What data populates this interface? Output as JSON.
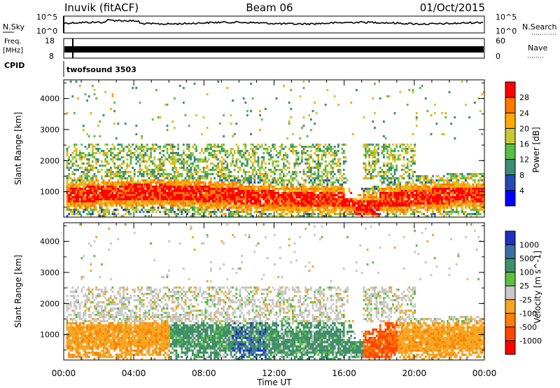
{
  "header": {
    "station": "Inuvik (fitACF)",
    "beam": "Beam 06",
    "date": "01/Oct/2015"
  },
  "top_panels": {
    "noise": {
      "left_label": "N.Sky",
      "right_label": "N.Search",
      "left_ticks": [
        "10^5",
        "10^0"
      ],
      "right_ticks": [
        "10^5",
        "10^0"
      ]
    },
    "frequency": {
      "left_label_1": "Freq.",
      "left_label_2": "[MHz]",
      "right_label": "Nave",
      "left_ticks": [
        "18",
        "8"
      ],
      "right_ticks": [
        "60",
        "0"
      ]
    },
    "cpid": {
      "label": "CPID",
      "mode": "twofsound 3503"
    }
  },
  "chart_data": [
    {
      "type": "heatmap",
      "name": "power",
      "ylabel": "Slant Range [km]",
      "xlabel": "",
      "x_ticks": [
        "00:00",
        "04:00",
        "08:00",
        "12:00",
        "16:00",
        "20:00",
        "00:00"
      ],
      "xlim_hours": [
        0,
        24
      ],
      "y_ticks": [
        1000,
        2000,
        3000,
        4000
      ],
      "ylim": [
        180,
        4600
      ],
      "colorbar": {
        "label": "Power [dB]",
        "ticks": [
          4,
          8,
          12,
          16,
          20,
          24,
          28
        ],
        "range": [
          0,
          32
        ],
        "colors": [
          "#0000ff",
          "#2649b3",
          "#3c8c78",
          "#5abe46",
          "#c8c832",
          "#ffaa00",
          "#ff7800",
          "#ff0000"
        ]
      },
      "regions": [
        {
          "from_h": 0,
          "to_h": 24,
          "range_km": [
            300,
            2600
          ],
          "value": "scatter"
        }
      ]
    },
    {
      "type": "heatmap",
      "name": "velocity",
      "ylabel": "Slant Range [km]",
      "xlabel": "Time UT",
      "x_ticks": [
        "00:00",
        "04:00",
        "08:00",
        "12:00",
        "16:00",
        "20:00",
        "00:00"
      ],
      "xlim_hours": [
        0,
        24
      ],
      "y_ticks": [
        1000,
        2000,
        3000,
        4000
      ],
      "ylim": [
        180,
        4600
      ],
      "colorbar": {
        "label": "Velocity [m s^-1]",
        "ticks": [
          "1000",
          "500",
          "100",
          "25",
          "-25",
          "-100",
          "-500",
          "-1000"
        ],
        "colors": [
          "#2030c0",
          "#3a6fa8",
          "#3f8f6a",
          "#5cc040",
          "#c8c8c8",
          "#f5a623",
          "#ff7f00",
          "#ff4500",
          "#ff0000"
        ]
      }
    }
  ]
}
